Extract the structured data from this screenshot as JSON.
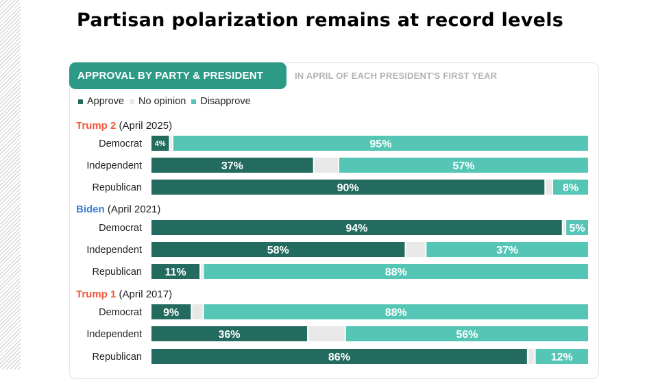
{
  "title": "Partisan polarization remains at record levels",
  "tab_label": "APPROVAL BY PARTY & PRESIDENT",
  "subtitle": "IN APRIL OF EACH PRESIDENT'S FIRST YEAR",
  "colors": {
    "approve": "#236b5e",
    "no_opinion": "#e8e8e8",
    "disapprove": "#55c6b5",
    "trump": "#f0573b",
    "biden": "#3f7fd1",
    "tab": "#2d9a86"
  },
  "legend": [
    {
      "label": "Approve",
      "color": "#236b5e"
    },
    {
      "label": "No opinion",
      "color": "#e8e8e8"
    },
    {
      "label": "Disapprove",
      "color": "#55c6b5"
    }
  ],
  "chart_data": {
    "type": "bar",
    "orientation": "horizontal",
    "stacked": true,
    "series_names": [
      "Approve",
      "No opinion",
      "Disapprove"
    ],
    "groups": [
      {
        "president": "Trump 2",
        "date": "(April 2025)",
        "name_color": "#f0573b",
        "rows": [
          {
            "category": "Democrat",
            "approve": 4,
            "no_opinion": 1,
            "disapprove": 95,
            "approve_label": "4%",
            "disapprove_label": "95%"
          },
          {
            "category": "Independent",
            "approve": 37,
            "no_opinion": 6,
            "disapprove": 57,
            "approve_label": "37%",
            "disapprove_label": "57%"
          },
          {
            "category": "Republican",
            "approve": 90,
            "no_opinion": 2,
            "disapprove": 8,
            "approve_label": "90%",
            "disapprove_label": "8%"
          }
        ]
      },
      {
        "president": "Biden",
        "date": "(April 2021)",
        "name_color": "#3f7fd1",
        "rows": [
          {
            "category": "Democrat",
            "approve": 94,
            "no_opinion": 1,
            "disapprove": 5,
            "approve_label": "94%",
            "disapprove_label": "5%"
          },
          {
            "category": "Independent",
            "approve": 58,
            "no_opinion": 5,
            "disapprove": 37,
            "approve_label": "58%",
            "disapprove_label": "37%"
          },
          {
            "category": "Republican",
            "approve": 11,
            "no_opinion": 1,
            "disapprove": 88,
            "approve_label": "11%",
            "disapprove_label": "88%"
          }
        ]
      },
      {
        "president": "Trump 1",
        "date": "(April 2017)",
        "name_color": "#f0573b",
        "rows": [
          {
            "category": "Democrat",
            "approve": 9,
            "no_opinion": 3,
            "disapprove": 88,
            "approve_label": "9%",
            "disapprove_label": "88%"
          },
          {
            "category": "Independent",
            "approve": 36,
            "no_opinion": 9,
            "disapprove": 56,
            "approve_label": "36%",
            "disapprove_label": "56%"
          },
          {
            "category": "Republican",
            "approve": 86,
            "no_opinion": 2,
            "disapprove": 12,
            "approve_label": "86%",
            "disapprove_label": "12%"
          }
        ]
      }
    ]
  }
}
